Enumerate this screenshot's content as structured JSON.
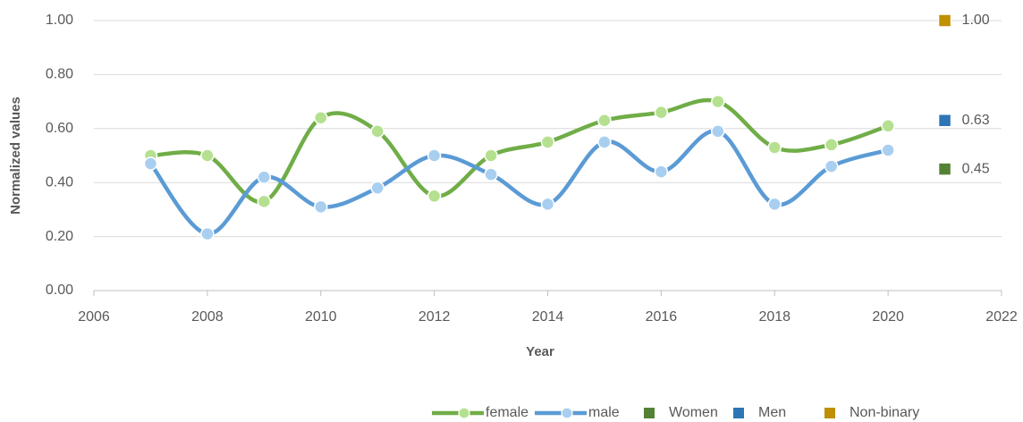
{
  "chart_data": {
    "type": "line",
    "xlabel": "Year",
    "ylabel": "Normalized values",
    "x": [
      2007,
      2008,
      2009,
      2010,
      2011,
      2012,
      2013,
      2014,
      2015,
      2016,
      2017,
      2018,
      2019,
      2020
    ],
    "series": [
      {
        "name": "female",
        "color": "#70ad47",
        "marker_color": "#b5e08f",
        "smooth": true,
        "values": [
          0.5,
          0.5,
          0.33,
          0.64,
          0.59,
          0.35,
          0.5,
          0.55,
          0.63,
          0.66,
          0.7,
          0.53,
          0.54,
          0.61
        ]
      },
      {
        "name": "male",
        "color": "#5b9bd5",
        "marker_color": "#a9cff0",
        "smooth": true,
        "values": [
          0.47,
          0.21,
          0.42,
          0.31,
          0.38,
          0.5,
          0.43,
          0.32,
          0.55,
          0.44,
          0.59,
          0.32,
          0.46,
          0.52
        ]
      },
      {
        "name": "Women",
        "color": "#548235",
        "marker": "square",
        "x": [
          2021
        ],
        "values": [
          0.45
        ],
        "value_labels": [
          "0.45"
        ]
      },
      {
        "name": "Men",
        "color": "#2e75b6",
        "marker": "square",
        "x": [
          2021
        ],
        "values": [
          0.63
        ],
        "value_labels": [
          "0.63"
        ]
      },
      {
        "name": "Non-binary",
        "color": "#bf9000",
        "marker": "square",
        "x": [
          2021
        ],
        "values": [
          1.0
        ],
        "value_labels": [
          "1.00"
        ]
      }
    ],
    "xlim": [
      2006,
      2022
    ],
    "xticks": [
      2006,
      2008,
      2010,
      2012,
      2014,
      2016,
      2018,
      2020,
      2022
    ],
    "ylim": [
      0,
      1
    ],
    "yticks": [
      {
        "value": 0,
        "label": "0.00"
      },
      {
        "value": 0.2,
        "label": "0.20"
      },
      {
        "value": 0.4,
        "label": "0.40"
      },
      {
        "value": 0.6,
        "label": "0.60"
      },
      {
        "value": 0.8,
        "label": "0.80"
      },
      {
        "value": 1,
        "label": "1.00"
      }
    ],
    "grid": true,
    "legend": "bottom"
  }
}
